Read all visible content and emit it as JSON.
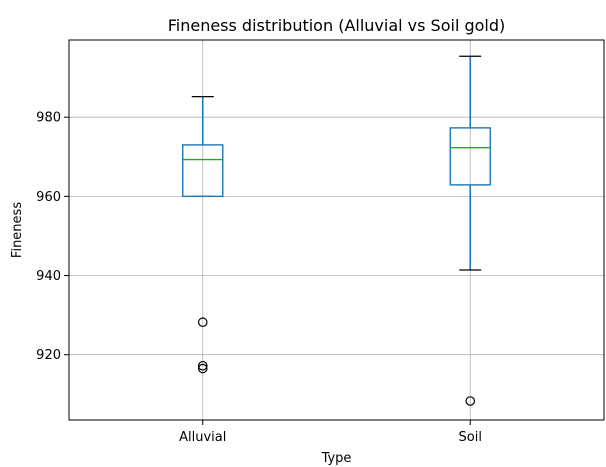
{
  "chart_data": {
    "type": "box",
    "title": "Fineness distribution (Alluvial vs Soil gold)",
    "xlabel": "Type",
    "ylabel": "Fineness",
    "categories": [
      "Alluvial",
      "Soil"
    ],
    "ylim": [
      903.5,
      999.5
    ],
    "yticks": [
      920,
      940,
      960,
      980
    ],
    "grid": true,
    "series": [
      {
        "category": "Alluvial",
        "whisker_low": 960.0,
        "q1": 960.0,
        "median": 969.3,
        "q3": 973.0,
        "whisker_high": 985.2,
        "outliers": [
          928.2,
          917.2,
          916.5
        ]
      },
      {
        "category": "Soil",
        "whisker_low": 941.4,
        "q1": 962.9,
        "median": 972.3,
        "q3": 977.3,
        "whisker_high": 995.4,
        "outliers": [
          908.3
        ]
      }
    ],
    "colors": {
      "box": "#1f77b4",
      "median": "#2ca02c",
      "grid": "#b0b0b0",
      "axes": "#000000",
      "flier": "#000000"
    }
  }
}
